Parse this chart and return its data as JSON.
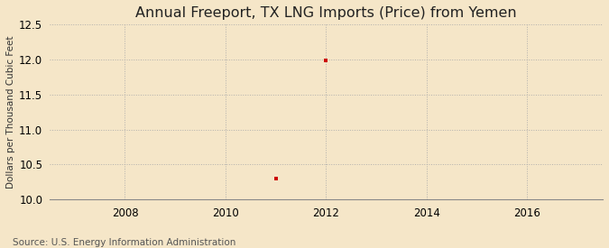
{
  "title": "Annual Freeport, TX LNG Imports (Price) from Yemen",
  "ylabel": "Dollars per Thousand Cubic Feet",
  "source_text": "Source: U.S. Energy Information Administration",
  "background_color": "#f5e6c8",
  "plot_bg_color": "#f5e6c8",
  "data_points": [
    {
      "year": 2011,
      "value": 10.3
    },
    {
      "year": 2012,
      "value": 11.99
    }
  ],
  "marker_color": "#cc0000",
  "marker_size": 3.5,
  "xlim": [
    2006.5,
    2017.5
  ],
  "ylim": [
    10.0,
    12.5
  ],
  "xticks": [
    2008,
    2010,
    2012,
    2014,
    2016
  ],
  "yticks": [
    10.0,
    10.5,
    11.0,
    11.5,
    12.0,
    12.5
  ],
  "grid_color": "#aaaaaa",
  "grid_style": ":",
  "title_fontsize": 11.5,
  "label_fontsize": 7.5,
  "tick_fontsize": 8.5,
  "source_fontsize": 7.5
}
